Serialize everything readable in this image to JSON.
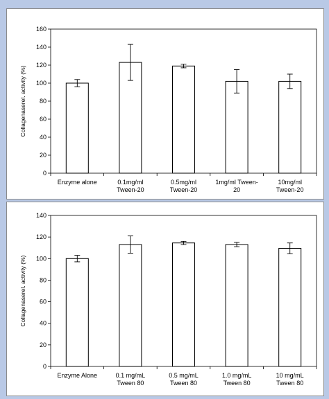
{
  "chart_data": [
    {
      "type": "bar",
      "categories": [
        [
          "Enzyme alone"
        ],
        [
          "0.1mg/ml",
          "Tween-20"
        ],
        [
          "0.5mg/ml",
          "Tween-20"
        ],
        [
          "1mg/ml Tween-",
          "20"
        ],
        [
          "10mg/ml",
          "Tween-20"
        ]
      ],
      "values": [
        100,
        123,
        119,
        102,
        102
      ],
      "errors": [
        4,
        20,
        2,
        13,
        8
      ],
      "ylabel": "Collagenaserel. activity (%)",
      "ylim": [
        0,
        160
      ],
      "yticks": [
        0,
        20,
        40,
        60,
        80,
        100,
        120,
        140,
        160
      ],
      "grid": false,
      "bar_color": "#ffffff",
      "edge_color": "#000000"
    },
    {
      "type": "bar",
      "categories": [
        [
          "Enzyme Alone"
        ],
        [
          "0.1 mg/mL",
          "Tween 80"
        ],
        [
          "0.5 mg/mL",
          "Tween 80"
        ],
        [
          "1.0 mg/mL",
          "Tween 80"
        ],
        [
          "10 mg/mL",
          "Tween 80"
        ]
      ],
      "values": [
        100,
        113,
        114.5,
        113,
        109.5
      ],
      "errors": [
        3,
        8,
        1.5,
        2,
        5
      ],
      "ylabel": "Collagenaserel. activity (%)",
      "ylim": [
        0,
        140
      ],
      "yticks": [
        0,
        20,
        40,
        60,
        80,
        100,
        120,
        140
      ],
      "grid": false,
      "bar_color": "#ffffff",
      "edge_color": "#000000"
    }
  ]
}
